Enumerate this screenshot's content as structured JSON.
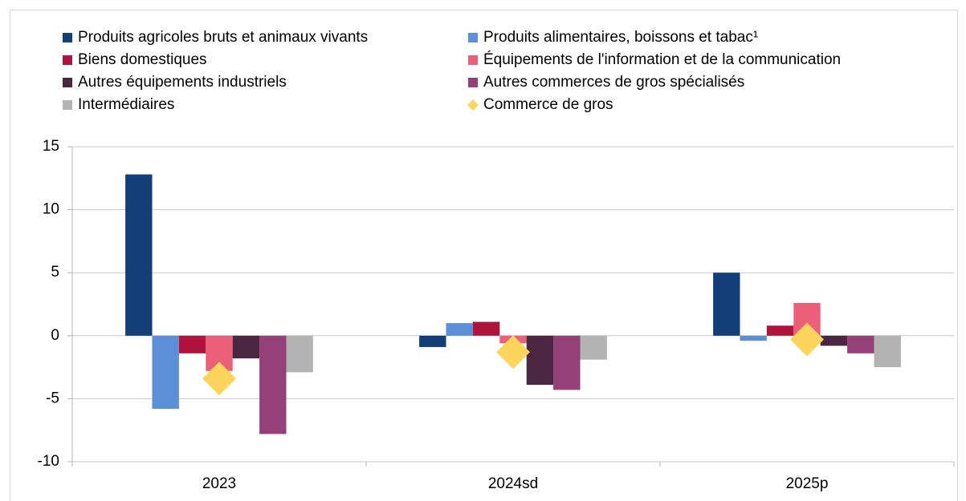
{
  "chart_data": {
    "type": "bar",
    "legend": "top",
    "categories": [
      "2023",
      "2024sd",
      "2025p"
    ],
    "ylim": [
      -10,
      15
    ],
    "yticks": [
      -10,
      -5,
      0,
      5,
      10,
      15
    ],
    "grid": true,
    "series": [
      {
        "name": "Produits agricoles bruts et animaux vivants",
        "color": "#123f78",
        "values": [
          12.8,
          -0.9,
          5.0
        ]
      },
      {
        "name": "Produits alimentaires, boissons et tabac¹",
        "color": "#5b8fd8",
        "values": [
          -5.8,
          1.0,
          -0.4
        ]
      },
      {
        "name": "Biens domestiques",
        "color": "#b0143c",
        "values": [
          -1.4,
          1.1,
          0.8
        ]
      },
      {
        "name": "Équipements de l'information et de la communication",
        "color": "#ec5f78",
        "values": [
          -2.8,
          -0.6,
          2.6
        ]
      },
      {
        "name": "Autres équipements industriels",
        "color": "#4b2641",
        "values": [
          -1.8,
          -3.9,
          -0.8
        ]
      },
      {
        "name": "Autres commerces de gros spécialisés",
        "color": "#96407a",
        "values": [
          -7.8,
          -4.3,
          -1.4
        ]
      },
      {
        "name": "Intermédiaires",
        "color": "#b3b3b3",
        "values": [
          -2.9,
          -1.9,
          -2.5
        ]
      },
      {
        "name": "Commerce de gros",
        "color": "#fdd45c",
        "type": "diamond",
        "values": [
          -3.4,
          -1.3,
          -0.3
        ]
      }
    ]
  }
}
